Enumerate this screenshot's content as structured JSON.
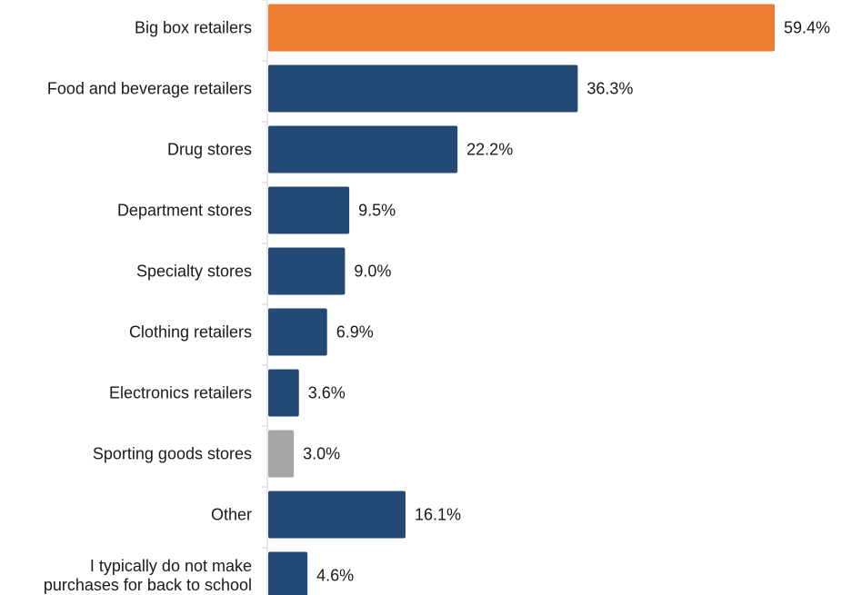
{
  "chart_data": {
    "type": "bar",
    "orientation": "horizontal",
    "categories": [
      "Big box retailers",
      "Food and beverage retailers",
      "Drug stores",
      "Department stores",
      "Specialty stores",
      "Clothing retailers",
      "Electronics retailers",
      "Sporting goods stores",
      "Other",
      "I typically do not make purchases for back to school"
    ],
    "category_lines": [
      [
        "Big box retailers"
      ],
      [
        "Food and beverage retailers"
      ],
      [
        "Drug stores"
      ],
      [
        "Department stores"
      ],
      [
        "Specialty stores"
      ],
      [
        "Clothing retailers"
      ],
      [
        "Electronics retailers"
      ],
      [
        "Sporting goods stores"
      ],
      [
        "Other"
      ],
      [
        "I typically do not make",
        "purchases for back to school"
      ]
    ],
    "values": [
      59.4,
      36.3,
      22.2,
      9.5,
      9.0,
      6.9,
      3.6,
      3.0,
      16.1,
      4.6
    ],
    "value_labels": [
      "59.4%",
      "36.3%",
      "22.2%",
      "9.5%",
      "9.0%",
      "6.9%",
      "3.6%",
      "3.0%",
      "16.1%",
      "4.6%"
    ],
    "bar_colors": [
      "#ED7D31",
      "#234A74",
      "#234A74",
      "#234A74",
      "#234A74",
      "#234A74",
      "#234A74",
      "#A6A6A6",
      "#234A74",
      "#234A74"
    ],
    "axis_color": "#D0D0D0",
    "xlim": [
      0,
      60
    ],
    "title": "",
    "xlabel": "",
    "ylabel": "",
    "grid": false,
    "legend": "none"
  }
}
